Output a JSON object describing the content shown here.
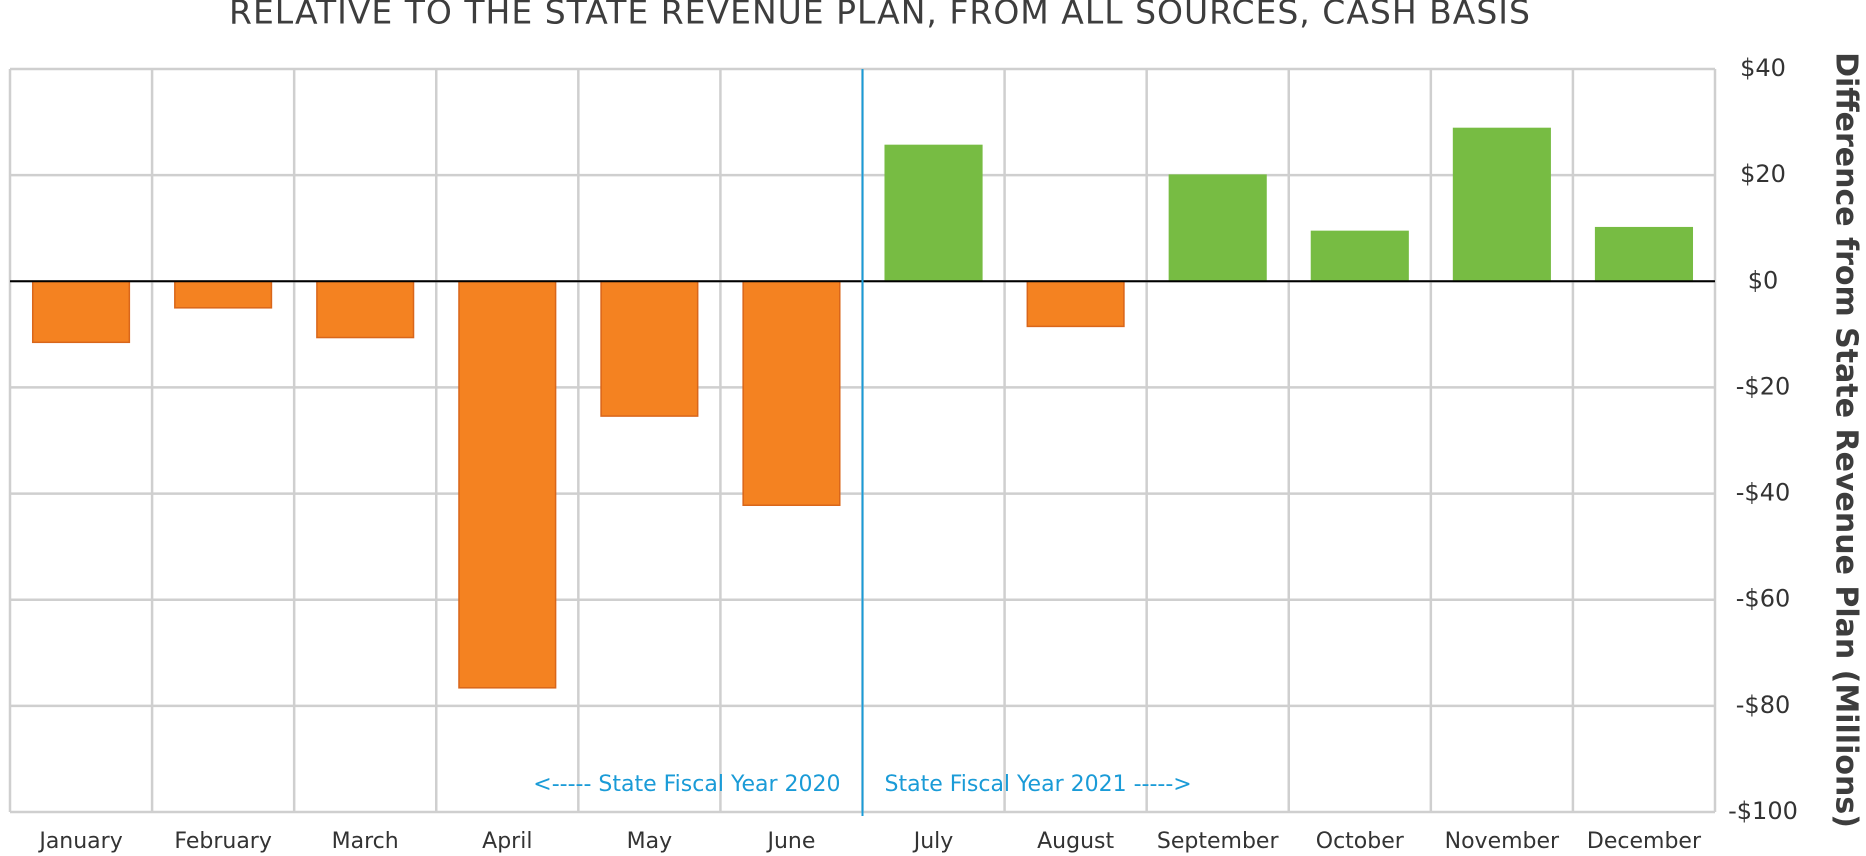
{
  "chart_data": {
    "type": "bar",
    "title": "RELATIVE TO THE STATE REVENUE PLAN, FROM ALL SOURCES, CASH BASIS",
    "y_label": "Difference from State Revenue Plan (Millions)",
    "categories": [
      "January",
      "February",
      "March",
      "April",
      "May",
      "June",
      "July",
      "August",
      "September",
      "October",
      "November",
      "December"
    ],
    "values": [
      -11.5,
      -5,
      -10.6,
      -76.6,
      -25.4,
      -42.2,
      25.6,
      -8.5,
      20,
      9.4,
      28.8,
      10.1
    ],
    "positive_color": "#77bc43",
    "negative_color": "#f48221",
    "ylim": [
      -100,
      40
    ],
    "yticks": [
      {
        "value": -100,
        "label": "-$100"
      },
      {
        "value": -80,
        "label": "-$80"
      },
      {
        "value": -60,
        "label": "-$60"
      },
      {
        "value": -40,
        "label": "-$40"
      },
      {
        "value": -20,
        "label": "-$20"
      },
      {
        "value": 0,
        "label": "$0"
      },
      {
        "value": 20,
        "label": "$20"
      },
      {
        "value": 40,
        "label": "$40"
      }
    ],
    "grid": true,
    "y_axis_side": "right",
    "annotations": [
      "<----- State Fiscal Year 2020",
      "State Fiscal Year 2021 ----->"
    ],
    "annotation_color": "#1a9bd7"
  }
}
